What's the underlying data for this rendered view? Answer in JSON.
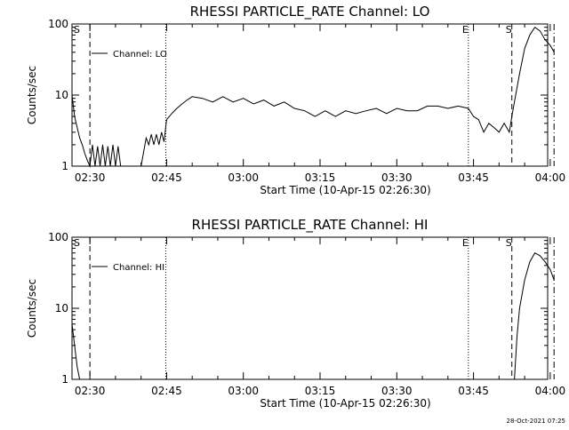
{
  "footer": {
    "timestamp": "28-Oct-2021 07:25"
  },
  "chart_data": [
    {
      "type": "line",
      "title": "RHESSI PARTICLE_RATE Channel: LO",
      "xlabel": "Start Time (10-Apr-15 02:26:30)",
      "ylabel": "Counts/sec",
      "yscale": "log",
      "ylim": [
        1,
        100
      ],
      "xlim_minutes_after_0226_30": [
        0,
        93
      ],
      "x_ticks": [
        "02:30",
        "02:45",
        "03:00",
        "03:15",
        "03:30",
        "03:45",
        "04:00"
      ],
      "y_ticks": [
        "1",
        "10",
        "100"
      ],
      "legend": {
        "label": "Channel: LO",
        "position": "top-left"
      },
      "markers": [
        {
          "label": "S",
          "time": "02:26:30",
          "style": "none"
        },
        {
          "label": "",
          "time": "02:30:00",
          "style": "dashed"
        },
        {
          "label": "",
          "time": "02:44:50",
          "style": "dotted"
        },
        {
          "label": "E",
          "time": "03:44:00",
          "style": "dotted"
        },
        {
          "label": "S",
          "time": "03:52:30",
          "style": "dashed"
        },
        {
          "label": "",
          "time": "04:00:45",
          "style": "dashdot"
        }
      ],
      "series": [
        {
          "x": [
            "02:26:30",
            "02:27:00",
            "02:27:30",
            "02:28:00",
            "02:28:30",
            "02:29:00",
            "02:29:30",
            "02:30:00",
            "02:30:30",
            "02:31:00",
            "02:31:30",
            "02:32:00",
            "02:32:30",
            "02:33:00",
            "02:33:30",
            "02:34:00",
            "02:34:30",
            "02:35:00",
            "02:35:30",
            "02:36:00",
            "02:36:30",
            "02:37:00",
            "02:38:00",
            "02:39:00",
            "02:40:00",
            "02:41:00",
            "02:41:30",
            "02:42:00",
            "02:42:30",
            "02:43:00",
            "02:43:30",
            "02:44:00",
            "02:44:30",
            "02:45:00",
            "02:46:00",
            "02:47:00",
            "02:48:00",
            "02:49:00",
            "02:50:00",
            "02:52:00",
            "02:54:00",
            "02:56:00",
            "02:58:00",
            "03:00:00",
            "03:02:00",
            "03:04:00",
            "03:06:00",
            "03:08:00",
            "03:10:00",
            "03:12:00",
            "03:14:00",
            "03:16:00",
            "03:18:00",
            "03:20:00",
            "03:22:00",
            "03:24:00",
            "03:26:00",
            "03:28:00",
            "03:30:00",
            "03:32:00",
            "03:34:00",
            "03:36:00",
            "03:38:00",
            "03:40:00",
            "03:42:00",
            "03:44:00",
            "03:45:00",
            "03:46:00",
            "03:47:00",
            "03:48:00",
            "03:49:00",
            "03:50:00",
            "03:51:00",
            "03:52:00",
            "03:52:30",
            "03:53:00",
            "03:54:00",
            "03:55:00",
            "03:56:00",
            "03:57:00",
            "03:58:00",
            "03:59:00",
            "04:00:00",
            "04:00:45"
          ],
          "values": [
            10,
            5,
            3.5,
            2.5,
            2,
            1.5,
            1.2,
            1.0,
            2.0,
            1.0,
            1.9,
            1.0,
            2.0,
            1.0,
            1.9,
            1.0,
            2.0,
            1.0,
            1.9,
            1.0,
            1.0,
            1.0,
            1.0,
            1.0,
            1.0,
            2.5,
            2.0,
            2.8,
            2.0,
            2.8,
            2.0,
            3.0,
            2.2,
            4.5,
            5.5,
            6.5,
            7.5,
            8.5,
            9.5,
            9.0,
            8.0,
            9.5,
            8.0,
            9.0,
            7.5,
            8.5,
            7.0,
            8.0,
            6.5,
            6.0,
            5.0,
            6.0,
            5.0,
            6.0,
            5.5,
            6.0,
            6.5,
            5.5,
            6.5,
            6.0,
            6.0,
            7.0,
            7.0,
            6.5,
            7.0,
            6.5,
            5.0,
            4.5,
            3.0,
            4.0,
            3.5,
            3.0,
            4.0,
            3.0,
            5.0,
            8.0,
            20,
            45,
            70,
            90,
            80,
            60,
            50,
            40
          ]
        }
      ]
    },
    {
      "type": "line",
      "title": "RHESSI PARTICLE_RATE Channel: HI",
      "xlabel": "Start Time (10-Apr-15 02:26:30)",
      "ylabel": "Counts/sec",
      "yscale": "log",
      "ylim": [
        1,
        100
      ],
      "xlim_minutes_after_0226_30": [
        0,
        93
      ],
      "x_ticks": [
        "02:30",
        "02:45",
        "03:00",
        "03:15",
        "03:30",
        "03:45",
        "04:00"
      ],
      "y_ticks": [
        "1",
        "10",
        "100"
      ],
      "legend": {
        "label": "Channel: HI",
        "position": "top-left"
      },
      "markers": [
        {
          "label": "S",
          "time": "02:26:30",
          "style": "none"
        },
        {
          "label": "",
          "time": "02:30:00",
          "style": "dashed"
        },
        {
          "label": "",
          "time": "02:44:50",
          "style": "dotted"
        },
        {
          "label": "E",
          "time": "03:44:00",
          "style": "dotted"
        },
        {
          "label": "S",
          "time": "03:52:30",
          "style": "dashed"
        },
        {
          "label": "",
          "time": "04:00:45",
          "style": "dashdot"
        }
      ],
      "series": [
        {
          "x": [
            "02:26:30",
            "02:27:00",
            "02:27:30",
            "02:28:00",
            "03:53:00",
            "03:53:30",
            "03:54:00",
            "03:55:00",
            "03:56:00",
            "03:57:00",
            "03:58:00",
            "03:59:00",
            "04:00:00",
            "04:00:45"
          ],
          "values": [
            6,
            3,
            1.5,
            1.0,
            1.0,
            4,
            10,
            25,
            45,
            60,
            55,
            45,
            35,
            25
          ]
        }
      ]
    }
  ]
}
